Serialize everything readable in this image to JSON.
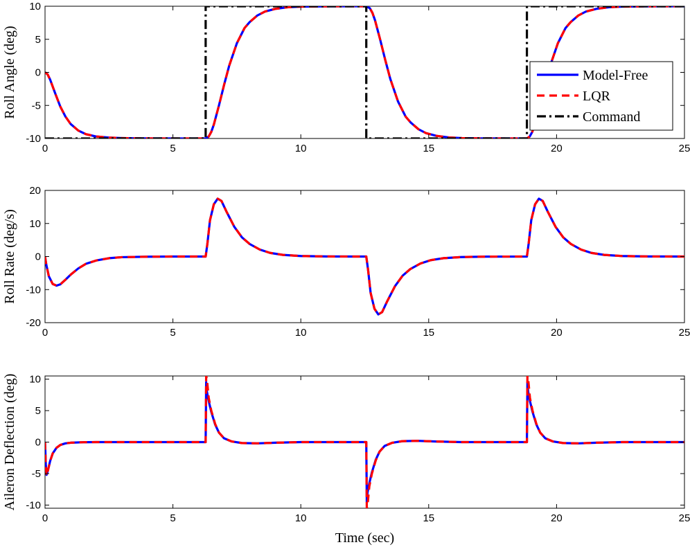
{
  "figure": {
    "xlabel": "Time (sec)"
  },
  "colors": {
    "model_free": "#0000ff",
    "lqr": "#ff0000",
    "command": "#000000"
  },
  "chart_data": [
    {
      "type": "line",
      "title": "",
      "ylabel": "Roll Angle (deg)",
      "xlabel": "",
      "xlim": [
        0,
        25
      ],
      "ylim": [
        -10,
        10
      ],
      "xticks": [
        0,
        5,
        10,
        15,
        20,
        25
      ],
      "yticks": [
        -10,
        -5,
        0,
        5,
        10
      ],
      "grid": false,
      "legend": {
        "placement": "right",
        "entries": [
          "Model-Free",
          "LQR",
          "Command"
        ]
      },
      "series": [
        {
          "name": "Model-Free",
          "x": [
            0,
            0.1,
            0.2,
            0.4,
            0.6,
            0.8,
            1.0,
            1.3,
            1.6,
            2.0,
            2.5,
            3.0,
            3.5,
            4.0,
            5.0,
            6.28,
            6.4,
            6.5,
            6.6,
            6.8,
            7.0,
            7.2,
            7.5,
            7.8,
            8.0,
            8.3,
            8.6,
            9.0,
            9.5,
            10.0,
            11.0,
            12.56,
            12.7,
            12.8,
            12.9,
            13.1,
            13.3,
            13.5,
            13.8,
            14.1,
            14.3,
            14.6,
            14.9,
            15.3,
            15.8,
            16.3,
            17.0,
            18.84,
            18.95,
            19.05,
            19.15,
            19.35,
            19.55,
            19.75,
            20.05,
            20.35,
            20.55,
            20.85,
            21.15,
            21.55,
            22.05,
            22.55,
            23.5,
            25.0
          ],
          "y": [
            0,
            -0.3,
            -1.1,
            -3.2,
            -5.2,
            -6.7,
            -7.8,
            -8.8,
            -9.35,
            -9.7,
            -9.87,
            -9.94,
            -9.97,
            -9.99,
            -10,
            -10,
            -9.7,
            -9.0,
            -7.9,
            -5.0,
            -1.9,
            1.0,
            4.4,
            6.7,
            7.6,
            8.6,
            9.2,
            9.6,
            9.85,
            9.94,
            9.99,
            10,
            9.7,
            9.0,
            7.9,
            5.0,
            1.9,
            -1.0,
            -4.4,
            -6.7,
            -7.6,
            -8.6,
            -9.2,
            -9.6,
            -9.85,
            -9.94,
            -9.99,
            -10,
            -9.7,
            -9.0,
            -7.9,
            -5.0,
            -1.9,
            1.0,
            4.4,
            6.7,
            7.6,
            8.6,
            9.2,
            9.6,
            9.85,
            9.94,
            9.99,
            10
          ]
        },
        {
          "name": "LQR",
          "x": [
            0,
            0.1,
            0.2,
            0.4,
            0.6,
            0.8,
            1.0,
            1.3,
            1.6,
            2.0,
            2.5,
            3.0,
            3.5,
            4.0,
            5.0,
            6.28,
            6.4,
            6.5,
            6.6,
            6.8,
            7.0,
            7.2,
            7.5,
            7.8,
            8.0,
            8.3,
            8.6,
            9.0,
            9.5,
            10.0,
            11.0,
            12.56,
            12.7,
            12.8,
            12.9,
            13.1,
            13.3,
            13.5,
            13.8,
            14.1,
            14.3,
            14.6,
            14.9,
            15.3,
            15.8,
            16.3,
            17.0,
            18.84,
            18.95,
            19.05,
            19.15,
            19.35,
            19.55,
            19.75,
            20.05,
            20.35,
            20.55,
            20.85,
            21.15,
            21.55,
            22.05,
            22.55,
            23.5,
            25.0
          ],
          "y": [
            0,
            -0.3,
            -1.1,
            -3.2,
            -5.2,
            -6.7,
            -7.8,
            -8.8,
            -9.35,
            -9.7,
            -9.87,
            -9.94,
            -9.97,
            -9.99,
            -10,
            -10,
            -9.7,
            -9.0,
            -7.9,
            -5.0,
            -1.9,
            1.0,
            4.4,
            6.7,
            7.6,
            8.6,
            9.2,
            9.6,
            9.85,
            9.94,
            9.99,
            10,
            9.7,
            9.0,
            7.9,
            5.0,
            1.9,
            -1.0,
            -4.4,
            -6.7,
            -7.6,
            -8.6,
            -9.2,
            -9.6,
            -9.85,
            -9.94,
            -9.99,
            -10,
            -9.7,
            -9.0,
            -7.9,
            -5.0,
            -1.9,
            1.0,
            4.4,
            6.7,
            7.6,
            8.6,
            9.2,
            9.6,
            9.85,
            9.94,
            9.99,
            10
          ]
        },
        {
          "name": "Command",
          "x": [
            0,
            6.28,
            6.28,
            12.56,
            12.56,
            18.84,
            18.84,
            25
          ],
          "y": [
            -10,
            -10,
            10,
            10,
            -10,
            -10,
            10,
            10
          ]
        }
      ]
    },
    {
      "type": "line",
      "title": "",
      "ylabel": "Roll Rate (deg/s)",
      "xlabel": "",
      "xlim": [
        0,
        25
      ],
      "ylim": [
        -20,
        20
      ],
      "xticks": [
        0,
        5,
        10,
        15,
        20,
        25
      ],
      "yticks": [
        -20,
        -10,
        0,
        10,
        20
      ],
      "grid": false,
      "series": [
        {
          "name": "Model-Free",
          "x": [
            0,
            0.05,
            0.15,
            0.3,
            0.45,
            0.6,
            0.8,
            1.0,
            1.3,
            1.6,
            2.0,
            2.5,
            3.0,
            4.0,
            5.0,
            6.28,
            6.35,
            6.45,
            6.6,
            6.75,
            6.9,
            7.1,
            7.4,
            7.7,
            8.0,
            8.4,
            8.8,
            9.3,
            10.0,
            11.0,
            12.56,
            12.63,
            12.73,
            12.88,
            13.03,
            13.18,
            13.38,
            13.68,
            13.98,
            14.28,
            14.68,
            15.08,
            15.58,
            16.28,
            17.28,
            18.84,
            18.91,
            19.01,
            19.16,
            19.31,
            19.46,
            19.66,
            19.96,
            20.26,
            20.56,
            20.96,
            21.36,
            21.86,
            22.56,
            23.56,
            25.0
          ],
          "y": [
            0,
            -2.5,
            -6.0,
            -8.3,
            -8.8,
            -8.4,
            -7.0,
            -5.5,
            -3.6,
            -2.2,
            -1.2,
            -0.5,
            -0.2,
            -0.05,
            0,
            0,
            4.0,
            11.0,
            15.8,
            17.5,
            16.8,
            13.5,
            9.0,
            5.8,
            3.8,
            2.1,
            1.1,
            0.5,
            0.15,
            0.02,
            0,
            -4.0,
            -11.0,
            -15.8,
            -17.5,
            -16.8,
            -13.5,
            -9.0,
            -5.8,
            -3.8,
            -2.1,
            -1.1,
            -0.5,
            -0.15,
            -0.02,
            0,
            4.0,
            11.0,
            15.8,
            17.5,
            16.8,
            13.5,
            9.0,
            5.8,
            3.8,
            2.1,
            1.1,
            0.5,
            0.15,
            0.02,
            0
          ]
        },
        {
          "name": "LQR",
          "x": [
            0,
            0.05,
            0.15,
            0.3,
            0.45,
            0.6,
            0.8,
            1.0,
            1.3,
            1.6,
            2.0,
            2.5,
            3.0,
            4.0,
            5.0,
            6.28,
            6.35,
            6.45,
            6.6,
            6.75,
            6.9,
            7.1,
            7.4,
            7.7,
            8.0,
            8.4,
            8.8,
            9.3,
            10.0,
            11.0,
            12.56,
            12.63,
            12.73,
            12.88,
            13.03,
            13.18,
            13.38,
            13.68,
            13.98,
            14.28,
            14.68,
            15.08,
            15.58,
            16.28,
            17.28,
            18.84,
            18.91,
            19.01,
            19.16,
            19.31,
            19.46,
            19.66,
            19.96,
            20.26,
            20.56,
            20.96,
            21.36,
            21.86,
            22.56,
            23.56,
            25.0
          ],
          "y": [
            0,
            -2.5,
            -6.0,
            -8.3,
            -8.8,
            -8.4,
            -7.0,
            -5.5,
            -3.6,
            -2.2,
            -1.2,
            -0.5,
            -0.2,
            -0.05,
            0,
            0,
            4.0,
            11.0,
            15.8,
            17.5,
            16.8,
            13.5,
            9.0,
            5.8,
            3.8,
            2.1,
            1.1,
            0.5,
            0.15,
            0.02,
            0,
            -4.0,
            -11.0,
            -15.8,
            -17.5,
            -16.8,
            -13.5,
            -9.0,
            -5.8,
            -3.8,
            -2.1,
            -1.1,
            -0.5,
            -0.15,
            -0.02,
            0,
            4.0,
            11.0,
            15.8,
            17.5,
            16.8,
            13.5,
            9.0,
            5.8,
            3.8,
            2.1,
            1.1,
            0.5,
            0.15,
            0.02,
            0
          ]
        }
      ]
    },
    {
      "type": "line",
      "title": "",
      "ylabel": "Aileron Deflection (deg)",
      "xlabel": "Time (sec)",
      "xlim": [
        0,
        25
      ],
      "ylim": [
        -10.5,
        10.5
      ],
      "xticks": [
        0,
        5,
        10,
        15,
        20,
        25
      ],
      "yticks": [
        -10,
        -5,
        0,
        5,
        10
      ],
      "grid": false,
      "series": [
        {
          "name": "Model-Free",
          "x": [
            0,
            0.03,
            0.06,
            0.12,
            0.2,
            0.3,
            0.45,
            0.6,
            0.8,
            1.0,
            1.5,
            2.0,
            3.0,
            4.0,
            5.0,
            6.28,
            6.3,
            6.33,
            6.4,
            6.5,
            6.65,
            6.8,
            7.0,
            7.3,
            7.7,
            8.3,
            9.0,
            10.0,
            12.56,
            12.58,
            12.61,
            12.68,
            12.78,
            12.93,
            13.08,
            13.28,
            13.58,
            13.98,
            14.58,
            15.28,
            16.28,
            18.84,
            18.86,
            18.89,
            18.96,
            19.06,
            19.21,
            19.36,
            19.56,
            19.86,
            20.26,
            20.86,
            21.56,
            22.56,
            25.0
          ],
          "y": [
            0,
            -3.5,
            -5.2,
            -4.4,
            -3.0,
            -1.8,
            -0.9,
            -0.45,
            -0.2,
            -0.1,
            -0.02,
            0,
            0,
            0,
            0,
            0,
            9.5,
            8.0,
            6.5,
            4.8,
            2.8,
            1.5,
            0.6,
            0.1,
            -0.15,
            -0.2,
            -0.1,
            0,
            0,
            -9.5,
            -8.0,
            -6.5,
            -4.8,
            -2.8,
            -1.5,
            -0.6,
            -0.1,
            0.15,
            0.2,
            0.1,
            0,
            0,
            9.5,
            8.0,
            6.5,
            4.8,
            2.8,
            1.5,
            0.6,
            0.1,
            -0.15,
            -0.2,
            -0.1,
            0,
            0
          ]
        },
        {
          "name": "LQR",
          "x": [
            0,
            0.03,
            0.06,
            0.12,
            0.2,
            0.3,
            0.45,
            0.6,
            0.8,
            1.0,
            1.5,
            2.0,
            3.0,
            4.0,
            5.0,
            6.28,
            6.3,
            6.33,
            6.4,
            6.5,
            6.65,
            6.8,
            7.0,
            7.3,
            7.7,
            8.3,
            9.0,
            10.0,
            12.56,
            12.58,
            12.61,
            12.68,
            12.78,
            12.93,
            13.08,
            13.28,
            13.58,
            13.98,
            14.58,
            15.28,
            16.28,
            18.84,
            18.86,
            18.89,
            18.96,
            19.06,
            19.21,
            19.36,
            19.56,
            19.86,
            20.26,
            20.86,
            21.56,
            22.56,
            25.0
          ],
          "y": [
            0,
            -3.8,
            -5.3,
            -4.4,
            -3.0,
            -1.8,
            -0.9,
            -0.45,
            -0.2,
            -0.1,
            -0.02,
            0,
            0,
            0,
            0,
            0,
            10.5,
            10.0,
            7.0,
            5.0,
            2.9,
            1.5,
            0.6,
            0.1,
            -0.15,
            -0.2,
            -0.1,
            0,
            0,
            -10.5,
            -10.0,
            -7.0,
            -5.0,
            -2.9,
            -1.5,
            -0.6,
            -0.1,
            0.15,
            0.2,
            0.1,
            0,
            0,
            10.5,
            10.0,
            7.0,
            5.0,
            2.9,
            1.5,
            0.6,
            0.1,
            -0.15,
            -0.2,
            -0.1,
            0,
            0
          ]
        }
      ]
    }
  ]
}
